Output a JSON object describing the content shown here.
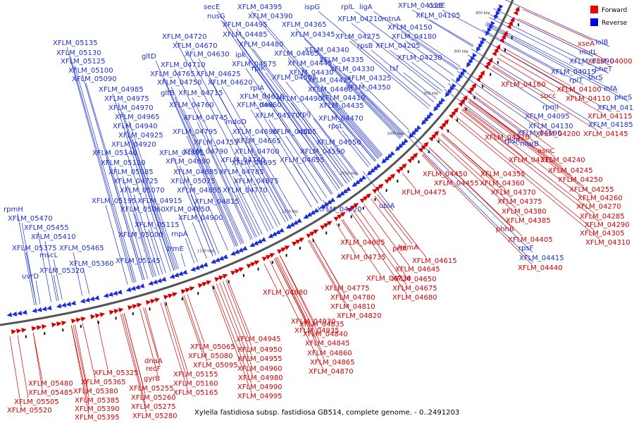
{
  "caption": "Xylella fastidiosa subsp. fastidiosa GB514, complete genome. - 0..2491203",
  "legend": [
    {
      "label": "Forward",
      "color": "#ee0000"
    },
    {
      "label": "Reverse",
      "color": "#0000ee"
    }
  ],
  "colors": {
    "forward": "#d40000",
    "reverse": "#1c2fd6",
    "backbone": "#555555"
  },
  "ticks": [
    "850 kbp",
    "900 kbp",
    "950 kbp",
    "1000 kbp",
    "1050 kbp",
    "1100 kbp",
    "1150 kbp"
  ],
  "reverse_labels": [
    "secE",
    "nusG",
    "XFLM_04395",
    "XFLM_04390",
    "ispG",
    "rplL",
    "ligA",
    "XFLM_04125",
    "coaE",
    "XFLM_04495",
    "XFLM_04365",
    "XFLM_04210",
    "mtnA",
    "XFLM_04105",
    "XFLM_04720",
    "XFLM_04485",
    "XFLM_04345",
    "XFLM_04275",
    "XFLM_04150",
    "XFLM_05135",
    "XFLM_04670",
    "XFLM_04480",
    "rpsB",
    "XFLM_04180",
    "XFLM_05130",
    "gltD",
    "XFLM_04630",
    "ipk",
    "XFLM_04465",
    "XFLM_04340",
    "XFLM_04205",
    "XFLM_05125",
    "XFLM_04710",
    "XFLM_04575",
    "XFLM_04445",
    "XFLM_04335",
    "XFLM_04230",
    "XFLM_05100",
    "XFLM_04765",
    "XFLM_04625",
    "rplK",
    "XFLM_04430",
    "XFLM_04330",
    "tsf",
    "XFLM_05090",
    "XFLM_04750",
    "XFLM_04620",
    "XFLM_04505",
    "XFLM_04425",
    "XFLM_04325",
    "XFLM_04985",
    "rplA",
    "XFLM_04460",
    "XFLM_04350",
    "gltB",
    "XFLM_04715",
    "XFLM_04975",
    "XFLM_04610",
    "XFLM_04490",
    "XFLM_04410",
    "XFLM_04970",
    "XFLM_04760",
    "XFLM_04660",
    "rlmL",
    "XFLM_04435",
    "XFLM_04965",
    "XFLM_04570",
    "rplJ",
    "XFLM_04745",
    "mdoD",
    "XFLM_04470",
    "XFLM_04940",
    "XFLM_04795",
    "XFLM_04690",
    "XFLM_04565",
    "rplL",
    "rpsL",
    "XFLM_04925",
    "XFLM_04755",
    "XFLM_04665",
    "XFLM_04550",
    "XFLM_04920",
    "XFLM_04790",
    "XFLM_04700",
    "XFLM_04590",
    "XFLM_05140",
    "XFLM_04895",
    "XFLM_04740",
    "XFLM_04655",
    "XFLM_05120",
    "XFLM_04890",
    "XFLM_04695",
    "XFLM_05085",
    "XFLM_04885",
    "XFLM_04785",
    "XFLM_04725",
    "XFLM_05075",
    "XFLM_04875",
    "XFLM_05070",
    "XFLM_04855",
    "XFLM_04770",
    "XFLM_05195",
    "XFLM_04915",
    "XFLM_04815",
    "XFLM_05060",
    "XFLM_04850",
    "XFLM_04900",
    "XFLM_05115",
    "rnpA",
    "XFLM_05000",
    "trmE",
    "XFLM_05145",
    "rpmH",
    "XFLM_05470",
    "XFLM_05455",
    "XFLM_05410",
    "XFLM_05375",
    "XFLM_05465",
    "mscL",
    "XFLM_05360",
    "XFLM_05320",
    "uvrD",
    "ubiA",
    "lolB",
    "mutL",
    "XFLM_03990",
    "pheT",
    "XFLM_04015",
    "thrS",
    "rplT",
    "ihfA",
    "pheS",
    "rpmI",
    "XFLM_04155",
    "XFLM_04095",
    "XFLM_04185",
    "XFLM_04130",
    "XFLM_04190",
    "rpsR",
    "murB",
    "rpsF",
    "XFLM_04415",
    "XFLM_04420"
  ],
  "forward_labels": [
    "xseA",
    "XFLM_04000",
    "XFLM_04160",
    "XFLM_04100",
    "succ",
    "XFLM_04110",
    "XFLM_04115",
    "XFLM_04200",
    "XFLM_04145",
    "XFLM_04320",
    "asnC",
    "XFLM_04315",
    "XFLM_04240",
    "XFLM_04245",
    "XFLM_04450",
    "XFLM_04355",
    "XFLM_04250",
    "XFLM_04455",
    "XFLM_04360",
    "XFLM_04255",
    "XFLM_04475",
    "XFLM_04370",
    "XFLM_04260",
    "XFLM_04375",
    "XFLM_04270",
    "XFLM_04380",
    "XFLM_04285",
    "XFLM_04385",
    "XFLM_04290",
    "phhB",
    "XFLM_04305",
    "XFLM_04405",
    "XFLM_04310",
    "XFLM_04440",
    "hemA",
    "XFLM_04685",
    "prfA",
    "XFLM_04615",
    "XFLM_04735",
    "XFLM_04645",
    "XFLM_04730",
    "XFLM_04650",
    "XFLM_04775",
    "XFLM_04675",
    "XFLM_04880",
    "XFLM_04780",
    "XFLM_04680",
    "XFLM_04810",
    "XFLM_04820",
    "XFLM_04930",
    "XFLM_04835",
    "XFLM_04935",
    "XFLM_04840",
    "XFLM_04945",
    "XFLM_04845",
    "XFLM_05065",
    "XFLM_04950",
    "XFLM_04860",
    "XFLM_05080",
    "XFLM_04955",
    "XFLM_04865",
    "XFLM_05095",
    "XFLM_04960",
    "XFLM_04870",
    "dnaA",
    "XFLM_04980",
    "recF",
    "XFLM_05155",
    "XFLM_04990",
    "XFLM_05325",
    "gyrB",
    "XFLM_05160",
    "XFLM_04995",
    "XFLM_05365",
    "XFLM_05165",
    "XFLM_05480",
    "XFLM_05255",
    "XFLM_05380",
    "XFLM_05485",
    "XFLM_05260",
    "XFLM_05385",
    "XFLM_05505",
    "XFLM_05275",
    "XFLM_05390",
    "XFLM_05520",
    "XFLM_05280",
    "XFLM_05395"
  ]
}
